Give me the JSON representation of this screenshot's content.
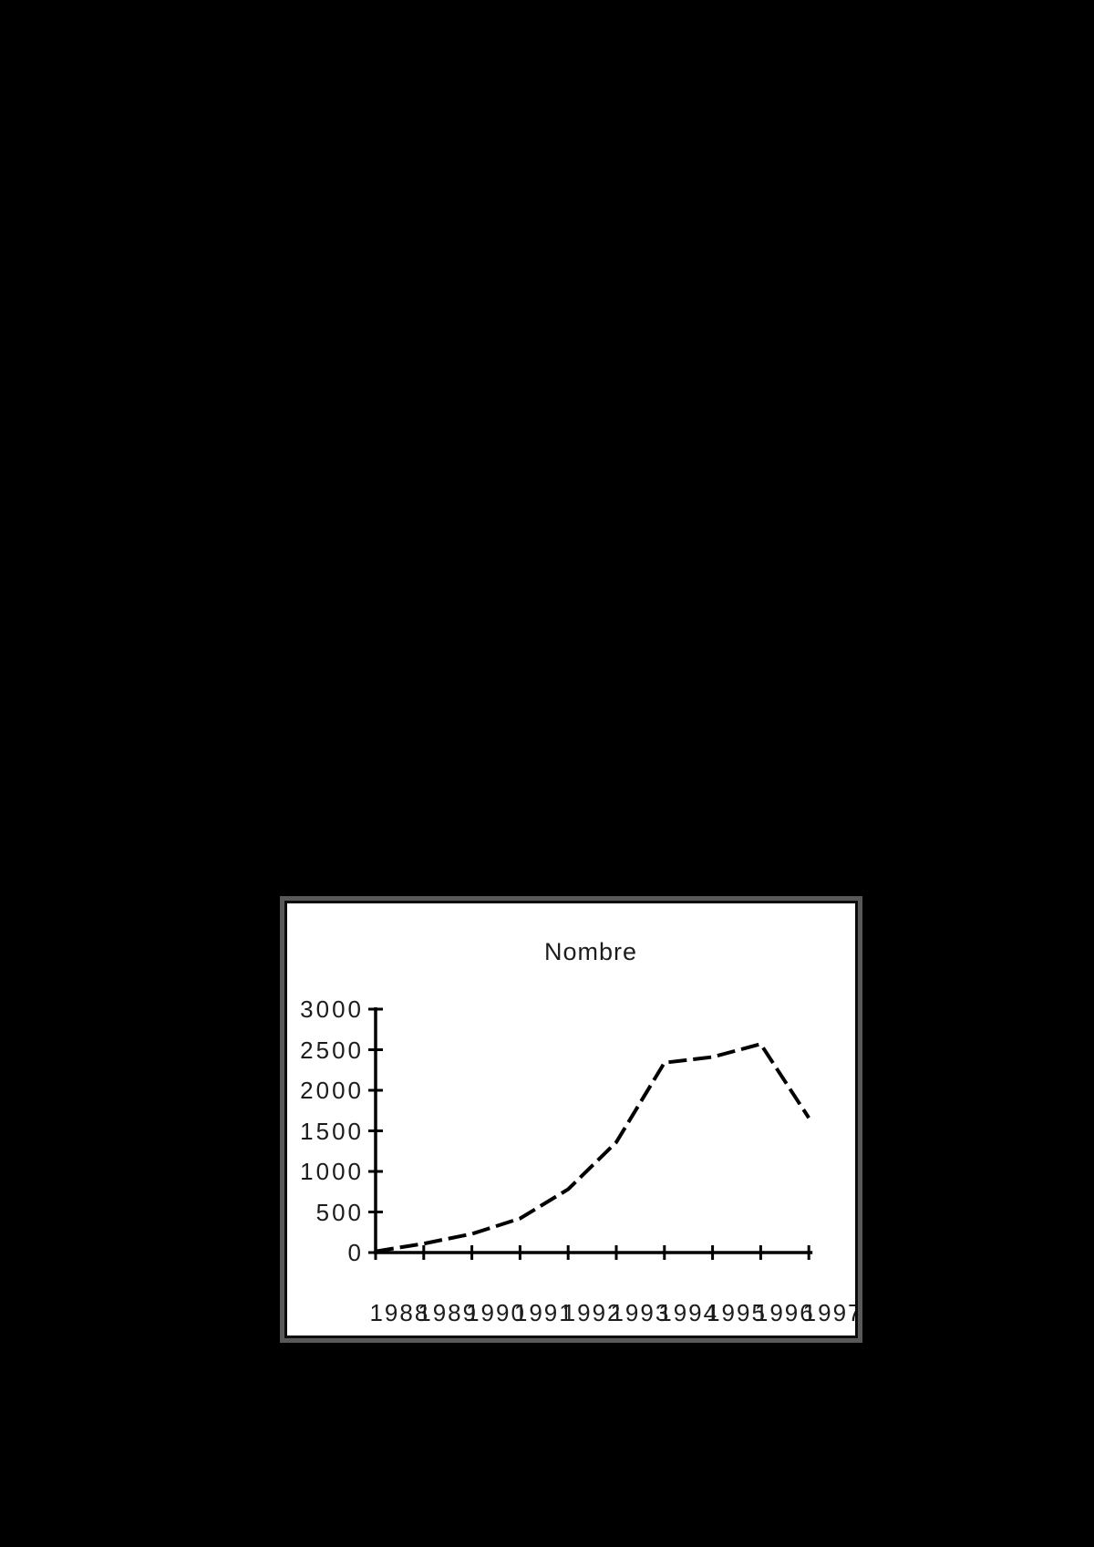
{
  "page": {
    "background": "#000000"
  },
  "chart": {
    "title": "Nombre",
    "colors": {
      "frame_shadow": "#595959",
      "frame_border": "#0b0b0b",
      "plot_background": "#ffffff",
      "line": "#000000",
      "text": "#1c1c1c"
    }
  },
  "chart_data": {
    "type": "line",
    "title": "Nombre",
    "categories": [
      "1988",
      "1989",
      "1990",
      "1991",
      "1992",
      "1993",
      "1994",
      "1995",
      "1996",
      "1997"
    ],
    "series": [
      {
        "name": "Nombre",
        "values": [
          15,
          110,
          230,
          420,
          780,
          1360,
          2340,
          2410,
          2570,
          1660
        ]
      }
    ],
    "xlabel": "",
    "ylabel": "",
    "ylim": [
      0,
      3000
    ],
    "y_ticks": [
      0,
      500,
      1000,
      1500,
      2000,
      2500,
      3000
    ],
    "grid": false,
    "legend": false,
    "line_style": "dashed"
  }
}
